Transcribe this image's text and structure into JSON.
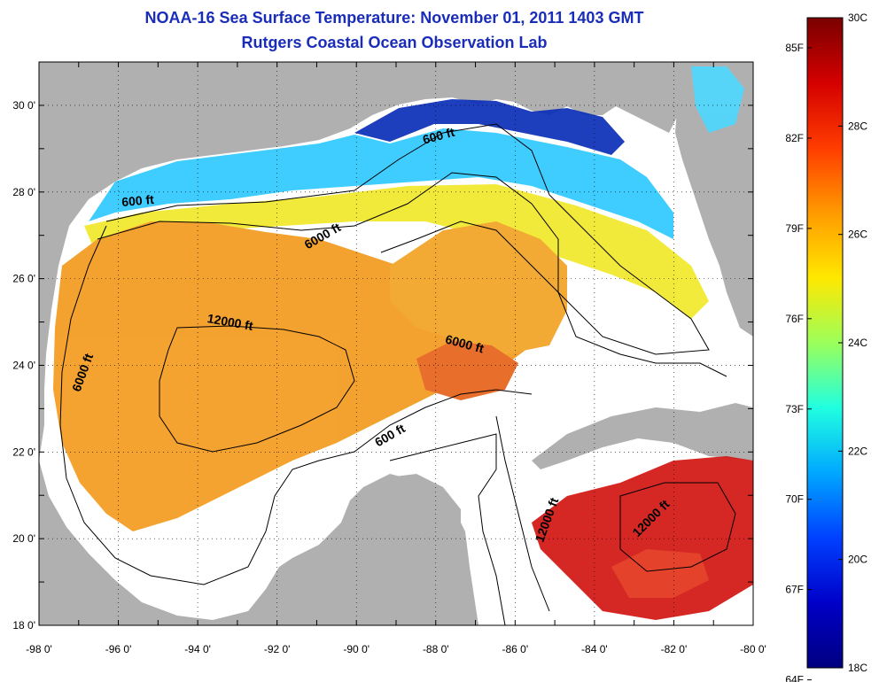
{
  "title": {
    "line1": "NOAA-16 Sea Surface Temperature:  November 01, 2011 1403 GMT",
    "line2": "Rutgers Coastal Ocean Observation Lab"
  },
  "map": {
    "lon_range": [
      -98,
      -80
    ],
    "lat_range": [
      18,
      31
    ],
    "x_ticks": [
      "-98 0'",
      "-96 0'",
      "-94 0'",
      "-92 0'",
      "-90 0'",
      "-88 0'",
      "-86 0'",
      "-84 0'",
      "-82 0'",
      "-80 0'"
    ],
    "y_ticks": [
      "18 0'",
      "20 0'",
      "22 0'",
      "24 0'",
      "26 0'",
      "28 0'",
      "30 0'"
    ],
    "land_color": "#b0b0b0",
    "cloud_color": "#ffffff",
    "grid": "dotted"
  },
  "contour_labels": [
    {
      "text": "600 ft",
      "lon": -95.5,
      "lat": 27.7
    },
    {
      "text": "600 ft",
      "lon": -87.9,
      "lat": 29.2
    },
    {
      "text": "6000 ft",
      "lon": -90.8,
      "lat": 26.9
    },
    {
      "text": "12000 ft",
      "lon": -93.2,
      "lat": 24.9
    },
    {
      "text": "6000 ft",
      "lon": -96.8,
      "lat": 23.8
    },
    {
      "text": "6000 ft",
      "lon": -87.3,
      "lat": 24.4
    },
    {
      "text": "600 ft",
      "lon": -89.1,
      "lat": 22.3
    },
    {
      "text": "12000 ft",
      "lon": -85.1,
      "lat": 20.4
    },
    {
      "text": "12000 ft",
      "lon": -82.5,
      "lat": 20.4
    }
  ],
  "colorbar": {
    "min_c": 18,
    "max_c": 30,
    "celsius_labels": [
      "30C",
      "28C",
      "26C",
      "24C",
      "22C",
      "20C",
      "18C"
    ],
    "fahrenheit_labels": [
      "85F",
      "82F",
      "79F",
      "76F",
      "73F",
      "70F",
      "67F",
      "64F"
    ],
    "colors": [
      "#7a0000",
      "#d40000",
      "#ff3c00",
      "#ff9a00",
      "#ffe800",
      "#9cff5a",
      "#20ffe0",
      "#00a8ff",
      "#0040ff",
      "#0000c8",
      "#000080"
    ]
  }
}
